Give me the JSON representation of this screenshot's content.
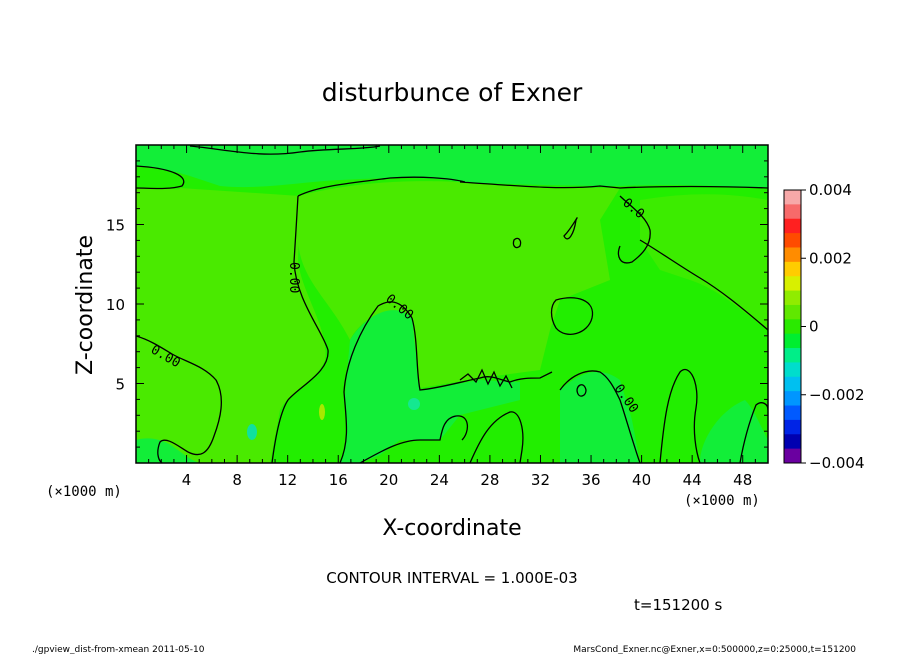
{
  "chart_data": {
    "type": "heatmap",
    "title": "disturbunce of Exner",
    "xlabel": "X-coordinate",
    "ylabel": "Z-coordinate",
    "x_unit_left": "(×1000 m)",
    "x_unit_right": "(×1000 m)",
    "xlim": [
      0,
      50
    ],
    "ylim": [
      0,
      20
    ],
    "x_ticks": [
      4,
      8,
      12,
      16,
      20,
      24,
      28,
      32,
      36,
      40,
      44,
      48
    ],
    "y_ticks": [
      5,
      10,
      15
    ],
    "contour_interval_text": "CONTOUR INTERVAL = 1.000E-03",
    "time_text": "t=151200 s",
    "contour_labels": [
      "0.00",
      "0.00",
      "0.00",
      "0.00"
    ],
    "colorbar": {
      "range": [
        -0.004,
        0.004
      ],
      "tick_labels": [
        "0.004",
        "0.002",
        "0",
        "−0.002",
        "−0.004"
      ],
      "tick_values": [
        0.004,
        0.002,
        0,
        -0.002,
        -0.004
      ],
      "colors": [
        "#f7a8a8",
        "#f76a6a",
        "#ff2020",
        "#ff4b00",
        "#ff8c00",
        "#ffcc00",
        "#d8f000",
        "#90ec00",
        "#60e800",
        "#2aea00",
        "#00ee30",
        "#00ee88",
        "#00ddcc",
        "#00c0f0",
        "#0096ff",
        "#005aff",
        "#0024e6",
        "#0000b0",
        "#6a00a0"
      ]
    },
    "field_colors": {
      "base": "#22ee00",
      "slight_positive": "#48ec00",
      "slight_negative": "#10ee32"
    },
    "contours_shown": [
      -0.001,
      0.0,
      0.001
    ]
  },
  "footer": {
    "left": "./gpview_dist-from-xmean  2011-05-10",
    "right": "MarsCond_Exner.nc@Exner,x=0:500000,z=0:25000,t=151200"
  }
}
